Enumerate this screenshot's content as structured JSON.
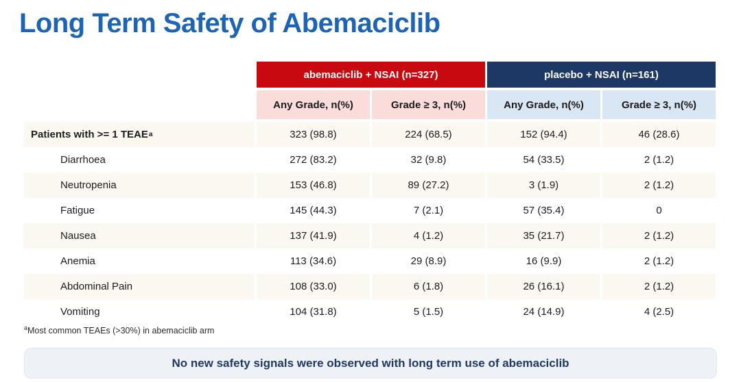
{
  "title": "Long Term Safety of Abemaciclib",
  "table": {
    "group_headers": [
      {
        "label": "abemaciclib + NSAI (n=327)",
        "color": "#C80A10"
      },
      {
        "label": "placebo + NSAI (n=161)",
        "color": "#1E3866"
      }
    ],
    "column_headers": [
      "Any Grade, n(%)",
      "Grade ≥ 3, n(%)",
      "Any Grade, n(%)",
      "Grade ≥ 3, n(%)"
    ],
    "rows": [
      {
        "label": "Patients with >= 1 TEAE",
        "marker": "a",
        "bold": true,
        "values": [
          "323 (98.8)",
          "224 (68.5)",
          "152 (94.4)",
          "46 (28.6)"
        ]
      },
      {
        "label": "Diarrhoea",
        "values": [
          "272 (83.2)",
          "32 (9.8)",
          "54 (33.5)",
          "2 (1.2)"
        ]
      },
      {
        "label": "Neutropenia",
        "values": [
          "153 (46.8)",
          "89 (27.2)",
          "3 (1.9)",
          "2 (1.2)"
        ]
      },
      {
        "label": "Fatigue",
        "values": [
          "145 (44.3)",
          "7 (2.1)",
          "57 (35.4)",
          "0"
        ]
      },
      {
        "label": "Nausea",
        "values": [
          "137 (41.9)",
          "4 (1.2)",
          "35 (21.7)",
          "2 (1.2)"
        ]
      },
      {
        "label": "Anemia",
        "values": [
          "113 (34.6)",
          "29 (8.9)",
          "16 (9.9)",
          "2 (1.2)"
        ]
      },
      {
        "label": "Abdominal Pain",
        "values": [
          "108 (33.0)",
          "6 (1.8)",
          "26 (16.1)",
          "2 (1.2)"
        ]
      },
      {
        "label": "Vomiting",
        "values": [
          "104 (31.8)",
          "5 (1.5)",
          "24 (14.9)",
          "4 (2.5)"
        ]
      }
    ]
  },
  "footnote": {
    "marker": "a",
    "text": "Most common TEAEs (>30%) in abemaciclib arm"
  },
  "banner": {
    "text": "No new safety signals were observed with long term use of abemaciclib"
  },
  "colors": {
    "title_text": "#1E64B4",
    "abemaciclib_header_bg": "#C80A10",
    "placebo_header_bg": "#1E3866",
    "abemaciclib_subheader_bg": "#FADCDB",
    "placebo_subheader_bg": "#D9E6F4",
    "row_stripe_bg": "#FBF7F1",
    "banner_bg": "#EEF2F7",
    "banner_text": "#1F3864"
  }
}
